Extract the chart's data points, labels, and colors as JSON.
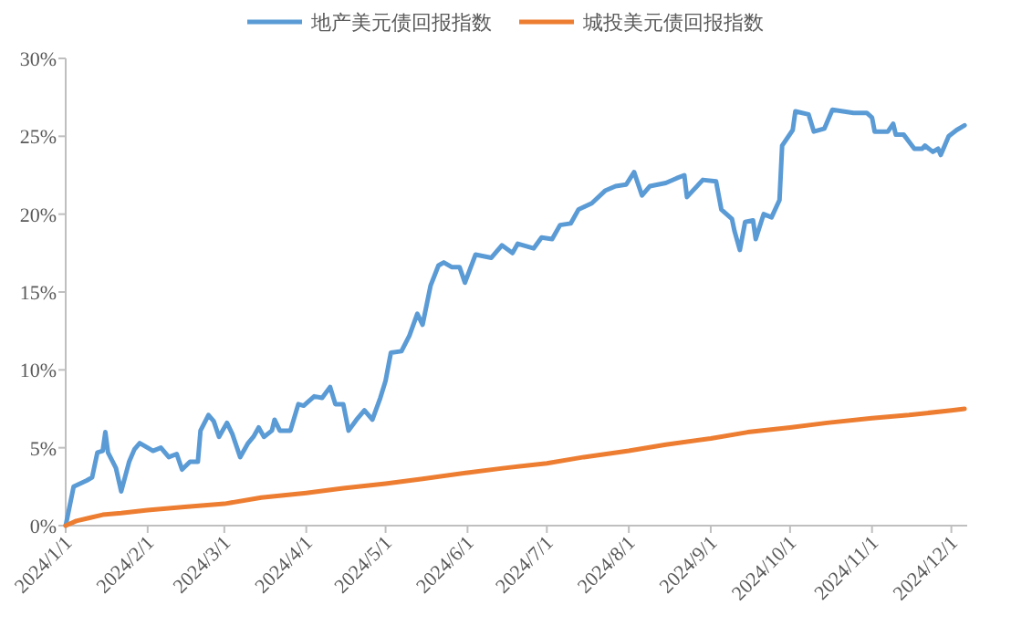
{
  "chart_data": {
    "type": "line",
    "legend": "top",
    "grid": false,
    "xlim": [
      "2024-01-01",
      "2024-12-07"
    ],
    "xticks": [
      {
        "value": "2024-01-01",
        "label": "2024/1/1"
      },
      {
        "value": "2024-02-01",
        "label": "2024/2/1"
      },
      {
        "value": "2024-03-01",
        "label": "2024/3/1"
      },
      {
        "value": "2024-04-01",
        "label": "2024/4/1"
      },
      {
        "value": "2024-05-01",
        "label": "2024/5/1"
      },
      {
        "value": "2024-06-01",
        "label": "2024/6/1"
      },
      {
        "value": "2024-07-01",
        "label": "2024/7/1"
      },
      {
        "value": "2024-08-01",
        "label": "2024/8/1"
      },
      {
        "value": "2024-09-01",
        "label": "2024/9/1"
      },
      {
        "value": "2024-10-01",
        "label": "2024/10/1"
      },
      {
        "value": "2024-11-01",
        "label": "2024/11/1"
      },
      {
        "value": "2024-12-01",
        "label": "2024/12/1"
      }
    ],
    "ylim": [
      0,
      30
    ],
    "yticks": [
      {
        "value": 0,
        "label": "0%"
      },
      {
        "value": 5,
        "label": "5%"
      },
      {
        "value": 10,
        "label": "10%"
      },
      {
        "value": 15,
        "label": "15%"
      },
      {
        "value": 20,
        "label": "20%"
      },
      {
        "value": 25,
        "label": "25%"
      },
      {
        "value": 30,
        "label": "30%"
      }
    ],
    "series": [
      {
        "name": "地产美元债回报指数",
        "color": "#5b9bd5",
        "x": [
          "2024-01-01",
          "2024-01-04",
          "2024-01-09",
          "2024-01-11",
          "2024-01-13",
          "2024-01-15",
          "2024-01-16",
          "2024-01-17",
          "2024-01-20",
          "2024-01-22",
          "2024-01-25",
          "2024-01-27",
          "2024-01-29",
          "2024-02-01",
          "2024-02-03",
          "2024-02-06",
          "2024-02-09",
          "2024-02-12",
          "2024-02-14",
          "2024-02-17",
          "2024-02-20",
          "2024-02-21",
          "2024-02-24",
          "2024-02-26",
          "2024-02-28",
          "2024-03-02",
          "2024-03-04",
          "2024-03-07",
          "2024-03-10",
          "2024-03-12",
          "2024-03-14",
          "2024-03-16",
          "2024-03-19",
          "2024-03-20",
          "2024-03-22",
          "2024-03-26",
          "2024-03-29",
          "2024-03-31",
          "2024-04-04",
          "2024-04-07",
          "2024-04-10",
          "2024-04-12",
          "2024-04-15",
          "2024-04-17",
          "2024-04-20",
          "2024-04-23",
          "2024-04-26",
          "2024-04-29",
          "2024-05-01",
          "2024-05-03",
          "2024-05-07",
          "2024-05-10",
          "2024-05-13",
          "2024-05-15",
          "2024-05-18",
          "2024-05-21",
          "2024-05-23",
          "2024-05-26",
          "2024-05-29",
          "2024-05-31",
          "2024-06-04",
          "2024-06-10",
          "2024-06-14",
          "2024-06-18",
          "2024-06-20",
          "2024-06-26",
          "2024-06-29",
          "2024-07-03",
          "2024-07-06",
          "2024-07-10",
          "2024-07-13",
          "2024-07-18",
          "2024-07-23",
          "2024-07-27",
          "2024-07-31",
          "2024-08-03",
          "2024-08-06",
          "2024-08-09",
          "2024-08-15",
          "2024-08-19",
          "2024-08-22",
          "2024-08-23",
          "2024-08-29",
          "2024-09-03",
          "2024-09-05",
          "2024-09-09",
          "2024-09-10",
          "2024-09-12",
          "2024-09-14",
          "2024-09-17",
          "2024-09-18",
          "2024-09-21",
          "2024-09-24",
          "2024-09-27",
          "2024-09-28",
          "2024-10-02",
          "2024-10-03",
          "2024-10-08",
          "2024-10-10",
          "2024-10-14",
          "2024-10-17",
          "2024-10-25",
          "2024-10-30",
          "2024-11-01",
          "2024-11-02",
          "2024-11-07",
          "2024-11-09",
          "2024-11-10",
          "2024-11-13",
          "2024-11-17",
          "2024-11-20",
          "2024-11-21",
          "2024-11-24",
          "2024-11-26",
          "2024-11-27",
          "2024-11-30",
          "2024-12-03",
          "2024-12-06"
        ],
        "values": [
          0,
          2.5,
          2.9,
          3.1,
          4.7,
          4.8,
          6.0,
          4.7,
          3.7,
          2.2,
          4.1,
          4.9,
          5.3,
          5.0,
          4.8,
          5.0,
          4.4,
          4.6,
          3.6,
          4.1,
          4.1,
          6.1,
          7.1,
          6.7,
          5.7,
          6.6,
          5.9,
          4.4,
          5.3,
          5.7,
          6.3,
          5.7,
          6.1,
          6.8,
          6.1,
          6.1,
          7.8,
          7.7,
          8.3,
          8.2,
          8.9,
          7.8,
          7.8,
          6.1,
          6.8,
          7.4,
          6.8,
          8.2,
          9.3,
          11.1,
          11.2,
          12.2,
          13.6,
          12.9,
          15.4,
          16.7,
          16.9,
          16.6,
          16.6,
          15.6,
          17.4,
          17.2,
          18.0,
          17.5,
          18.1,
          17.8,
          18.5,
          18.4,
          19.3,
          19.4,
          20.3,
          20.7,
          21.5,
          21.8,
          21.9,
          22.7,
          21.2,
          21.8,
          22.0,
          22.3,
          22.5,
          21.1,
          22.2,
          22.1,
          20.3,
          19.7,
          18.9,
          17.7,
          19.5,
          19.6,
          18.4,
          20.0,
          19.8,
          20.9,
          24.4,
          25.4,
          26.6,
          26.4,
          25.3,
          25.5,
          26.7,
          26.5,
          26.5,
          26.2,
          25.3,
          25.3,
          25.8,
          25.1,
          25.1,
          24.2,
          24.2,
          24.4,
          24.0,
          24.2,
          23.8,
          25.0,
          25.4,
          25.7
        ]
      },
      {
        "name": "城投美元债回报指数",
        "color": "#ed7d31",
        "x": [
          "2024-01-01",
          "2024-01-05",
          "2024-01-10",
          "2024-01-15",
          "2024-01-22",
          "2024-02-01",
          "2024-02-15",
          "2024-03-01",
          "2024-03-15",
          "2024-04-01",
          "2024-04-15",
          "2024-05-01",
          "2024-05-15",
          "2024-06-01",
          "2024-06-15",
          "2024-07-01",
          "2024-07-15",
          "2024-08-01",
          "2024-08-15",
          "2024-09-01",
          "2024-09-15",
          "2024-10-01",
          "2024-10-15",
          "2024-11-01",
          "2024-11-15",
          "2024-12-01",
          "2024-12-06"
        ],
        "values": [
          0,
          0.3,
          0.5,
          0.7,
          0.8,
          1.0,
          1.2,
          1.4,
          1.8,
          2.1,
          2.4,
          2.7,
          3.0,
          3.4,
          3.7,
          4.0,
          4.4,
          4.8,
          5.2,
          5.6,
          6.0,
          6.3,
          6.6,
          6.9,
          7.1,
          7.4,
          7.5
        ]
      }
    ]
  }
}
